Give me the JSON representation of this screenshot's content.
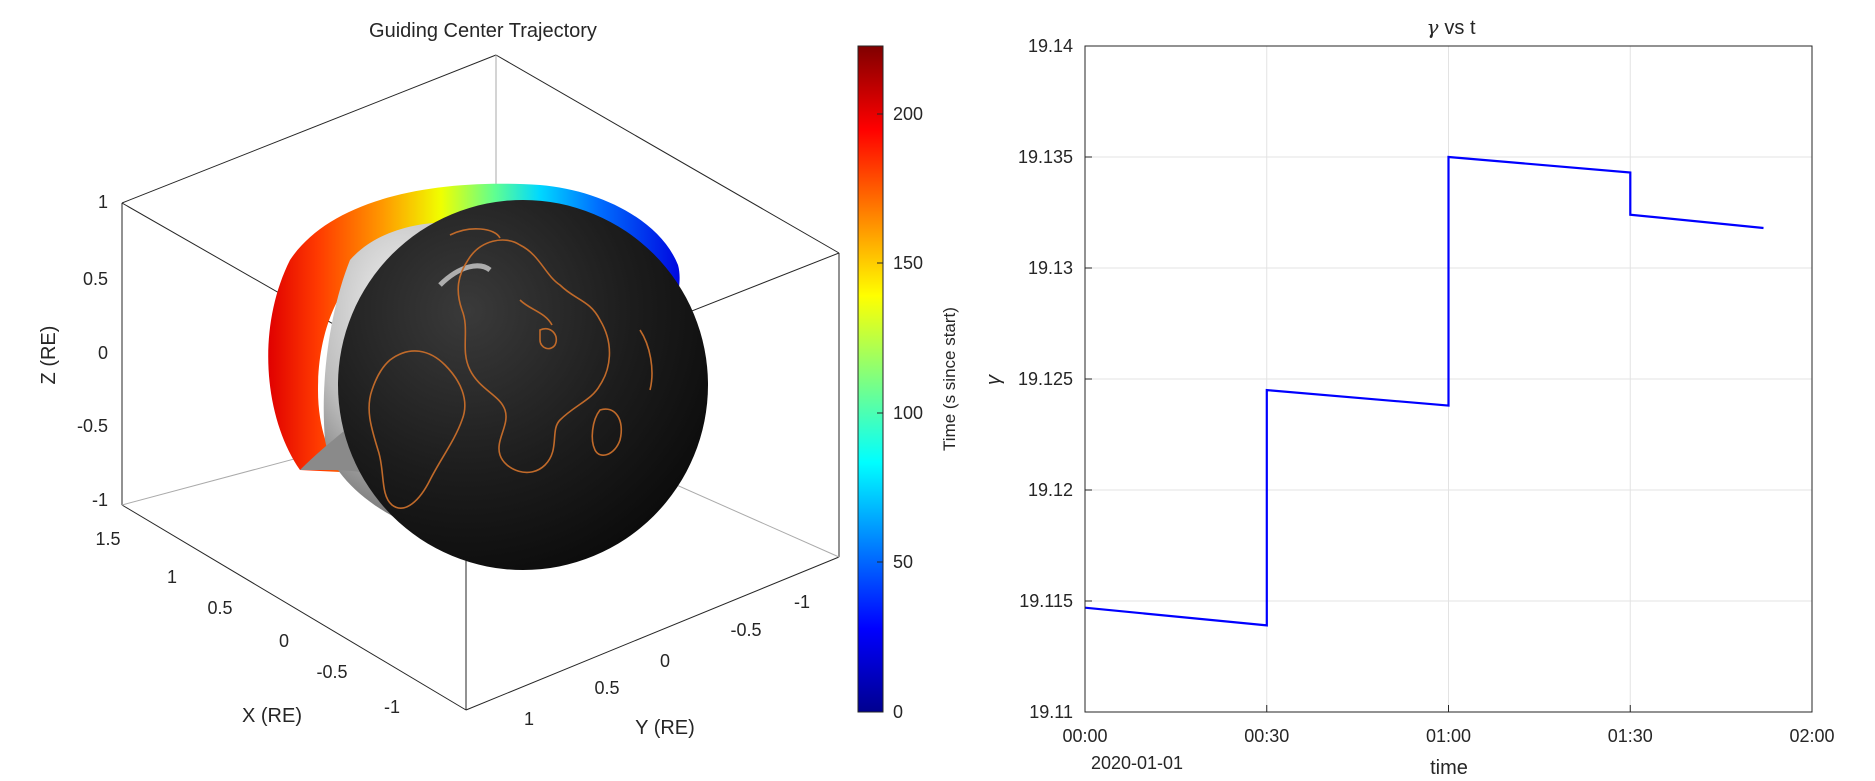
{
  "chart_data": [
    {
      "type": "scatter3d",
      "title": "Guiding Center Trajectory",
      "xlabel": "X (RE)",
      "ylabel": "Y (RE)",
      "zlabel": "Z (RE)",
      "xlim": [
        -1.5,
        1.5
      ],
      "ylim": [
        -1.5,
        1.5
      ],
      "zlim": [
        -1,
        1
      ],
      "x_ticks": [
        "1.5",
        "1",
        "0.5",
        "0",
        "-0.5",
        "-1"
      ],
      "y_ticks": [
        "1",
        "0.5",
        "0",
        "-0.5",
        "-1"
      ],
      "z_ticks": [
        "1",
        "0.5",
        "0",
        "-0.5",
        "-1"
      ],
      "colorbar": {
        "label": "Time (s since start)",
        "ticks": [
          "0",
          "50",
          "100",
          "150",
          "200"
        ],
        "range": [
          0,
          222
        ],
        "colormap": "jet"
      },
      "elements": [
        "Earth sphere with coastlines",
        "Guiding center trajectory colored by time"
      ]
    },
    {
      "type": "line",
      "title": "γ vs t",
      "title_symbol": "γ",
      "title_text": "vs t",
      "xlabel": "time",
      "ylabel": "γ",
      "x_start_label": "2020-01-01",
      "x_ticks": [
        "00:00",
        "00:30",
        "01:00",
        "01:30",
        "02:00"
      ],
      "y_ticks": [
        "19.11",
        "19.115",
        "19.12",
        "19.125",
        "19.13",
        "19.135",
        "19.14"
      ],
      "xlim_minutes": [
        0,
        120
      ],
      "ylim": [
        19.11,
        19.14
      ],
      "grid": true,
      "color": "#0000ff",
      "series": [
        {
          "x_minutes": [
            0,
            30,
            30,
            60,
            60,
            90,
            90,
            112
          ],
          "y": [
            19.1147,
            19.1139,
            19.1245,
            19.1238,
            19.135,
            19.1343,
            19.1324,
            19.1318
          ]
        }
      ]
    }
  ]
}
